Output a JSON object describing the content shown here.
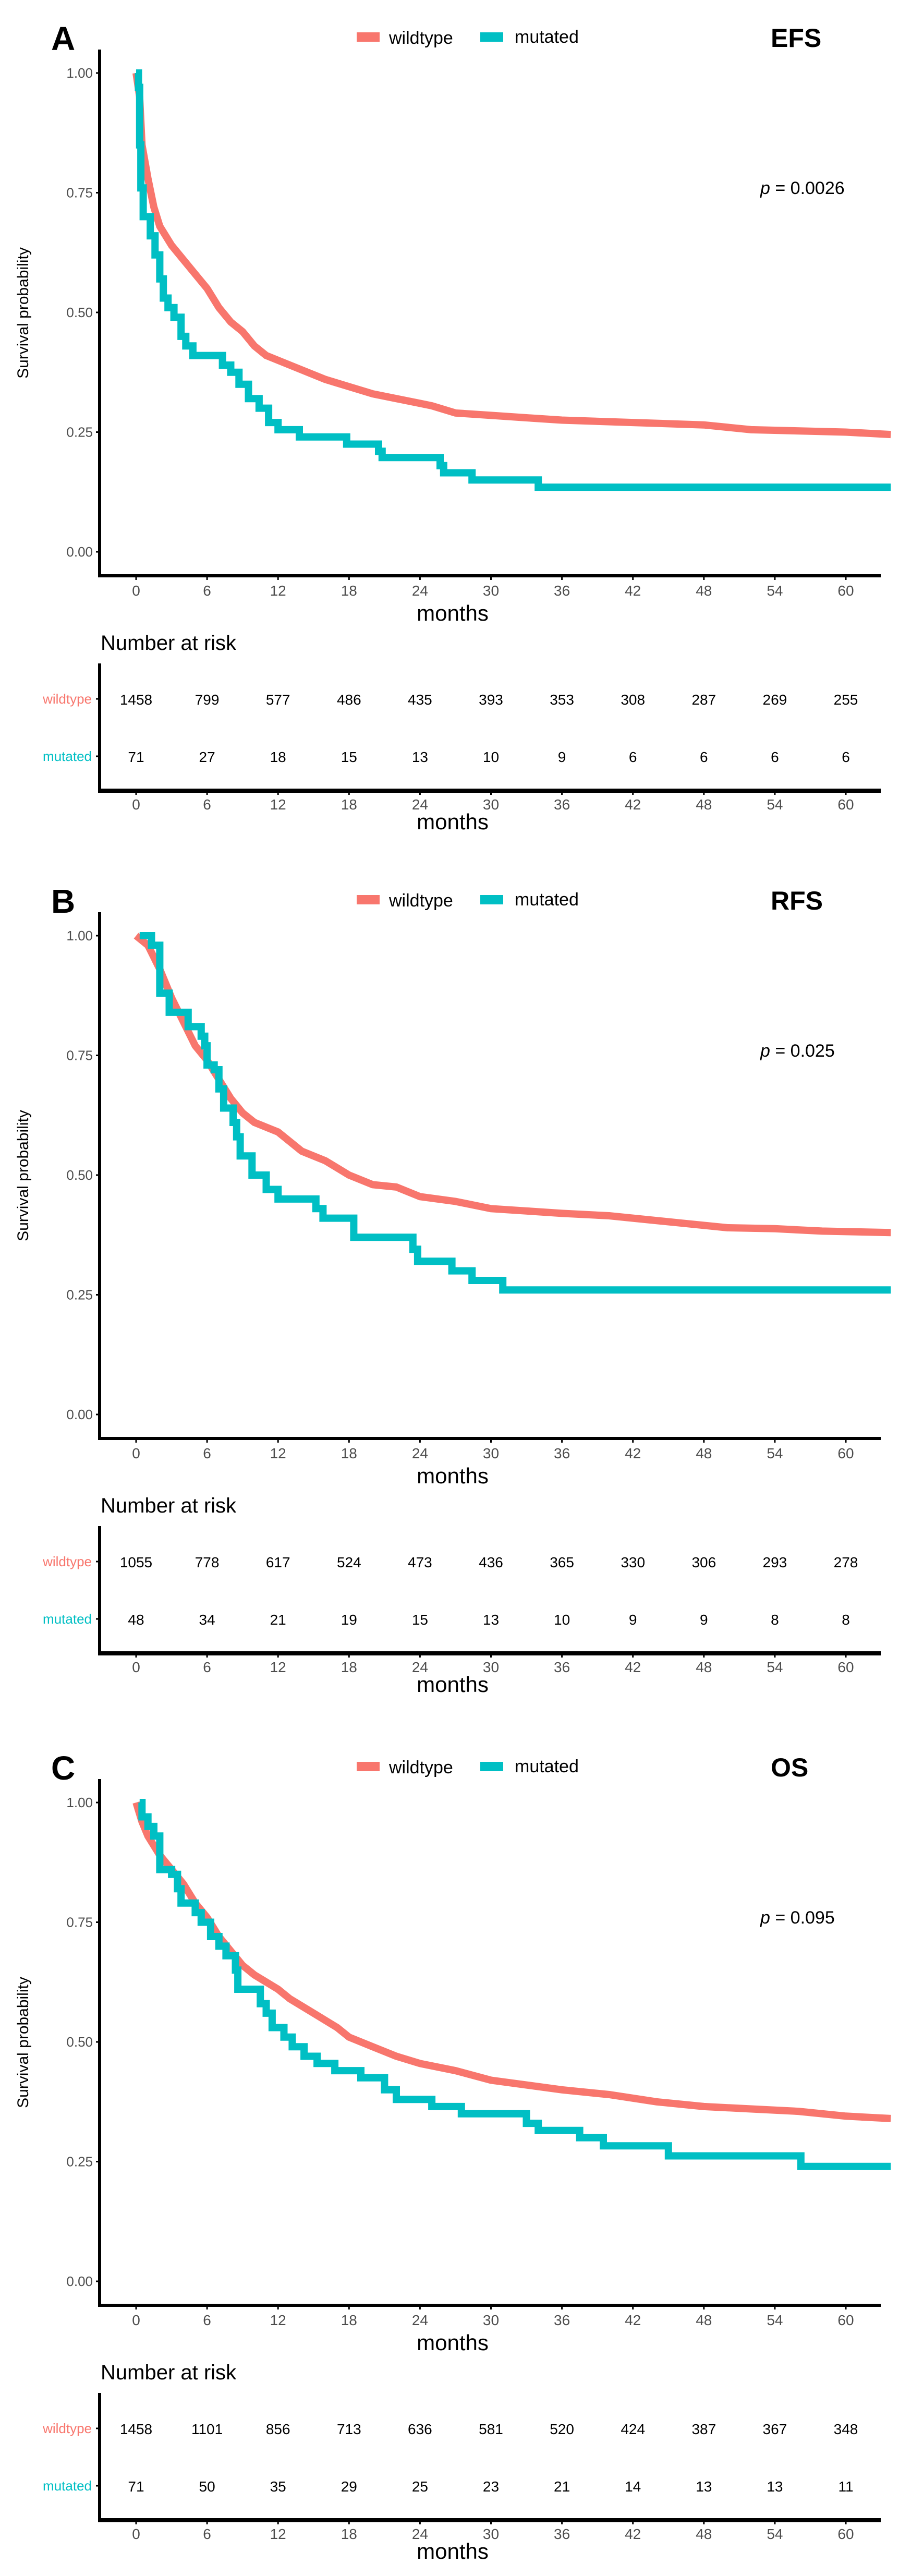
{
  "colors": {
    "wildtype": "#F8766D",
    "mutated": "#00BFC4",
    "axis": "#000000",
    "tick_text": "#4d4d4d"
  },
  "chart_data": [
    {
      "type": "line",
      "panel_label": "A",
      "title": "EFS",
      "pvalue_prefix": "p",
      "pvalue_text": " = 0.0026",
      "xlabel": "months",
      "ylabel": "Survival probability",
      "xlim": [
        0,
        63.8
      ],
      "ylim": [
        0,
        1
      ],
      "x_ticks": [
        "0",
        "6",
        "12",
        "18",
        "24",
        "30",
        "36",
        "42",
        "48",
        "54",
        "60"
      ],
      "y_ticks": [
        "0.00",
        "0.25",
        "0.50",
        "0.75",
        "1.00"
      ],
      "legend": [
        "wildtype",
        "mutated"
      ],
      "legend_position": "top",
      "series": [
        {
          "name": "wildtype",
          "step": false,
          "points": [
            [
              0,
              1.0
            ],
            [
              0.3,
              0.95
            ],
            [
              0.5,
              0.85
            ],
            [
              1,
              0.78
            ],
            [
              1.5,
              0.72
            ],
            [
              2,
              0.68
            ],
            [
              3,
              0.64
            ],
            [
              4,
              0.61
            ],
            [
              5,
              0.58
            ],
            [
              6,
              0.55
            ],
            [
              7,
              0.51
            ],
            [
              8,
              0.48
            ],
            [
              9,
              0.46
            ],
            [
              10,
              0.43
            ],
            [
              11,
              0.41
            ],
            [
              12,
              0.4
            ],
            [
              14,
              0.38
            ],
            [
              16,
              0.36
            ],
            [
              18,
              0.345
            ],
            [
              20,
              0.33
            ],
            [
              22,
              0.32
            ],
            [
              24,
              0.31
            ],
            [
              25,
              0.305
            ],
            [
              27,
              0.29
            ],
            [
              30,
              0.285
            ],
            [
              33,
              0.28
            ],
            [
              36,
              0.275
            ],
            [
              42,
              0.27
            ],
            [
              48,
              0.265
            ],
            [
              52,
              0.255
            ],
            [
              60,
              0.25
            ],
            [
              63.8,
              0.245
            ]
          ]
        },
        {
          "name": "mutated",
          "step": true,
          "points": [
            [
              0,
              1.0
            ],
            [
              0.2,
              0.97
            ],
            [
              0.3,
              0.85
            ],
            [
              0.4,
              0.76
            ],
            [
              0.6,
              0.7
            ],
            [
              1.2,
              0.66
            ],
            [
              1.6,
              0.62
            ],
            [
              2,
              0.57
            ],
            [
              2.3,
              0.53
            ],
            [
              2.7,
              0.51
            ],
            [
              3.2,
              0.49
            ],
            [
              3.8,
              0.45
            ],
            [
              4.2,
              0.43
            ],
            [
              4.8,
              0.41
            ],
            [
              7.3,
              0.39
            ],
            [
              8,
              0.375
            ],
            [
              8.7,
              0.35
            ],
            [
              9.5,
              0.32
            ],
            [
              10.4,
              0.3
            ],
            [
              11.2,
              0.27
            ],
            [
              12,
              0.255
            ],
            [
              13.8,
              0.24
            ],
            [
              17.8,
              0.225
            ],
            [
              20.5,
              0.21
            ],
            [
              20.8,
              0.197
            ],
            [
              25.7,
              0.18
            ],
            [
              26,
              0.165
            ],
            [
              28.4,
              0.15
            ],
            [
              34,
              0.135
            ],
            [
              63.8,
              0.135
            ]
          ]
        }
      ],
      "risk_table": {
        "title": "Number at risk",
        "xlabel": "months",
        "rows": [
          {
            "name": "wildtype",
            "values": [
              "1458",
              "799",
              "577",
              "486",
              "435",
              "393",
              "353",
              "308",
              "287",
              "269",
              "255"
            ]
          },
          {
            "name": "mutated",
            "values": [
              "71",
              "27",
              "18",
              "15",
              "13",
              "10",
              "9",
              "6",
              "6",
              "6",
              "6"
            ]
          }
        ]
      }
    },
    {
      "type": "line",
      "panel_label": "B",
      "title": "RFS",
      "pvalue_prefix": "p",
      "pvalue_text": " = 0.025",
      "xlabel": "months",
      "ylabel": "Survival probability",
      "xlim": [
        0,
        63.8
      ],
      "ylim": [
        0,
        1
      ],
      "x_ticks": [
        "0",
        "6",
        "12",
        "18",
        "24",
        "30",
        "36",
        "42",
        "48",
        "54",
        "60"
      ],
      "y_ticks": [
        "0.00",
        "0.25",
        "0.50",
        "0.75",
        "1.00"
      ],
      "legend": [
        "wildtype",
        "mutated"
      ],
      "legend_position": "top",
      "series": [
        {
          "name": "wildtype",
          "step": false,
          "points": [
            [
              0,
              1.0
            ],
            [
              1,
              0.98
            ],
            [
              2,
              0.93
            ],
            [
              3,
              0.87
            ],
            [
              4,
              0.82
            ],
            [
              5,
              0.77
            ],
            [
              6,
              0.74
            ],
            [
              7,
              0.7
            ],
            [
              8,
              0.66
            ],
            [
              9,
              0.63
            ],
            [
              10,
              0.61
            ],
            [
              12,
              0.59
            ],
            [
              14,
              0.55
            ],
            [
              16,
              0.53
            ],
            [
              18,
              0.5
            ],
            [
              20,
              0.48
            ],
            [
              22,
              0.475
            ],
            [
              24,
              0.455
            ],
            [
              27,
              0.445
            ],
            [
              30,
              0.43
            ],
            [
              33,
              0.425
            ],
            [
              36,
              0.42
            ],
            [
              40,
              0.415
            ],
            [
              42,
              0.41
            ],
            [
              46,
              0.4
            ],
            [
              50,
              0.39
            ],
            [
              54,
              0.388
            ],
            [
              58,
              0.383
            ],
            [
              63.8,
              0.38
            ]
          ]
        },
        {
          "name": "mutated",
          "step": true,
          "points": [
            [
              0.3,
              1.0
            ],
            [
              1.3,
              0.98
            ],
            [
              2,
              0.88
            ],
            [
              2.8,
              0.84
            ],
            [
              4.4,
              0.81
            ],
            [
              5.5,
              0.79
            ],
            [
              5.8,
              0.77
            ],
            [
              6,
              0.73
            ],
            [
              6.6,
              0.72
            ],
            [
              7,
              0.68
            ],
            [
              7.4,
              0.64
            ],
            [
              8.2,
              0.61
            ],
            [
              8.5,
              0.58
            ],
            [
              8.8,
              0.54
            ],
            [
              9.8,
              0.5
            ],
            [
              11,
              0.47
            ],
            [
              12,
              0.45
            ],
            [
              15.2,
              0.43
            ],
            [
              15.8,
              0.41
            ],
            [
              18.4,
              0.37
            ],
            [
              23.4,
              0.345
            ],
            [
              23.8,
              0.32
            ],
            [
              26.7,
              0.3
            ],
            [
              28.4,
              0.28
            ],
            [
              31,
              0.26
            ],
            [
              63.8,
              0.26
            ]
          ]
        }
      ],
      "risk_table": {
        "title": "Number at risk",
        "xlabel": "months",
        "rows": [
          {
            "name": "wildtype",
            "values": [
              "1055",
              "778",
              "617",
              "524",
              "473",
              "436",
              "365",
              "330",
              "306",
              "293",
              "278"
            ]
          },
          {
            "name": "mutated",
            "values": [
              "48",
              "34",
              "21",
              "19",
              "15",
              "13",
              "10",
              "9",
              "9",
              "8",
              "8"
            ]
          }
        ]
      }
    },
    {
      "type": "line",
      "panel_label": "C",
      "title": "OS",
      "pvalue_prefix": "p",
      "pvalue_text": " = 0.095",
      "xlabel": "months",
      "ylabel": "Survival probability",
      "xlim": [
        0,
        63.8
      ],
      "ylim": [
        0,
        1
      ],
      "x_ticks": [
        "0",
        "6",
        "12",
        "18",
        "24",
        "30",
        "36",
        "42",
        "48",
        "54",
        "60"
      ],
      "y_ticks": [
        "0.00",
        "0.25",
        "0.50",
        "0.75",
        "1.00"
      ],
      "legend": [
        "wildtype",
        "mutated"
      ],
      "legend_position": "top",
      "series": [
        {
          "name": "wildtype",
          "step": false,
          "points": [
            [
              0,
              1.0
            ],
            [
              0.5,
              0.96
            ],
            [
              1,
              0.93
            ],
            [
              2,
              0.89
            ],
            [
              3,
              0.86
            ],
            [
              4,
              0.83
            ],
            [
              5,
              0.79
            ],
            [
              6,
              0.76
            ],
            [
              7,
              0.72
            ],
            [
              8,
              0.69
            ],
            [
              9,
              0.66
            ],
            [
              10,
              0.64
            ],
            [
              12,
              0.61
            ],
            [
              13,
              0.59
            ],
            [
              15,
              0.56
            ],
            [
              17,
              0.53
            ],
            [
              18,
              0.51
            ],
            [
              20,
              0.49
            ],
            [
              22,
              0.47
            ],
            [
              24,
              0.455
            ],
            [
              27,
              0.44
            ],
            [
              30,
              0.42
            ],
            [
              33,
              0.41
            ],
            [
              36,
              0.4
            ],
            [
              40,
              0.39
            ],
            [
              44,
              0.375
            ],
            [
              48,
              0.365
            ],
            [
              52,
              0.36
            ],
            [
              56,
              0.355
            ],
            [
              60,
              0.345
            ],
            [
              63.8,
              0.34
            ]
          ]
        },
        {
          "name": "mutated",
          "step": true,
          "points": [
            [
              0.3,
              1.0
            ],
            [
              0.5,
              0.97
            ],
            [
              1,
              0.95
            ],
            [
              1.5,
              0.93
            ],
            [
              2,
              0.86
            ],
            [
              3,
              0.85
            ],
            [
              3.5,
              0.82
            ],
            [
              3.8,
              0.79
            ],
            [
              5,
              0.77
            ],
            [
              5.5,
              0.75
            ],
            [
              6.3,
              0.72
            ],
            [
              7,
              0.7
            ],
            [
              7.6,
              0.68
            ],
            [
              8.4,
              0.65
            ],
            [
              8.6,
              0.61
            ],
            [
              10.5,
              0.58
            ],
            [
              11,
              0.56
            ],
            [
              11.5,
              0.53
            ],
            [
              12.5,
              0.51
            ],
            [
              13.2,
              0.49
            ],
            [
              14.2,
              0.47
            ],
            [
              15.3,
              0.455
            ],
            [
              16.8,
              0.44
            ],
            [
              19,
              0.425
            ],
            [
              21,
              0.4
            ],
            [
              22,
              0.38
            ],
            [
              25,
              0.365
            ],
            [
              27.5,
              0.35
            ],
            [
              33,
              0.33
            ],
            [
              34,
              0.315
            ],
            [
              37.5,
              0.3
            ],
            [
              39.5,
              0.283
            ],
            [
              45,
              0.262
            ],
            [
              56.2,
              0.24
            ],
            [
              63.8,
              0.24
            ]
          ]
        }
      ],
      "risk_table": {
        "title": "Number at risk",
        "xlabel": "months",
        "rows": [
          {
            "name": "wildtype",
            "values": [
              "1458",
              "1101",
              "856",
              "713",
              "636",
              "581",
              "520",
              "424",
              "387",
              "367",
              "348"
            ]
          },
          {
            "name": "mutated",
            "values": [
              "71",
              "50",
              "35",
              "29",
              "25",
              "23",
              "21",
              "14",
              "13",
              "13",
              "11"
            ]
          }
        ]
      }
    }
  ]
}
